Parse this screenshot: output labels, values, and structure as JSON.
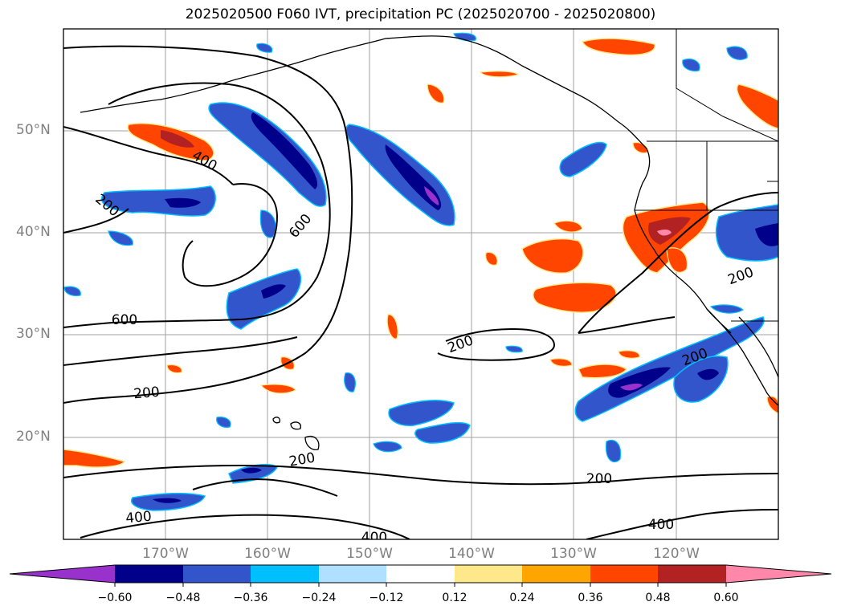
{
  "title": "2025020500 F060 IVT, precipitation PC (2025020700 - 2025020800)",
  "lat_labels": [
    "50°N",
    "40°N",
    "30°N",
    "20°N"
  ],
  "lon_labels": [
    "170°W",
    "160°W",
    "150°W",
    "140°W",
    "130°W",
    "120°W"
  ],
  "contour_labels": [
    "400",
    "200",
    "600",
    "600",
    "200",
    "200",
    "200",
    "200",
    "200",
    "400",
    "400",
    "400",
    "200"
  ],
  "colorbar": {
    "ticks": [
      "−0.60",
      "−0.48",
      "−0.36",
      "−0.24",
      "−0.12",
      "0.12",
      "0.24",
      "0.36",
      "0.48",
      "0.60"
    ],
    "colors": [
      "#9932cc",
      "#00008b",
      "#3355cc",
      "#00bfff",
      "#b0e0ff",
      "#ffffff",
      "#ffe88a",
      "#ffa500",
      "#ff4500",
      "#b22222",
      "#ff88aa"
    ]
  },
  "colors": {
    "neg_purple": "#9932cc",
    "neg_navy": "#00008b",
    "neg_blue": "#3355cc",
    "neg_cyan": "#00bfff",
    "neg_light": "#b0e0ff",
    "pos_yellow": "#ffe88a",
    "pos_orange": "#ffa500",
    "pos_redorange": "#ff4500",
    "pos_darkred": "#b22222",
    "pos_pink": "#ff88aa"
  }
}
